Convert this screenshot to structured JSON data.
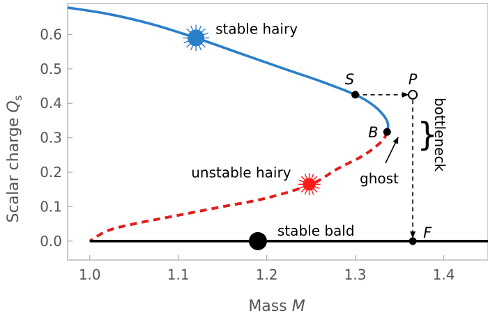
{
  "chart_data": {
    "type": "line",
    "xlabel": "Mass",
    "xlabel_var": "M",
    "ylabel": "Scalar charge",
    "ylabel_var": "Q",
    "ylabel_sub": "s",
    "xlim": [
      0.975,
      1.45
    ],
    "ylim": [
      -0.055,
      0.69
    ],
    "xticks": [
      1.0,
      1.1,
      1.2,
      1.3,
      1.4
    ],
    "xtick_labels": [
      "1.0",
      "1.1",
      "1.2",
      "1.3",
      "1.4"
    ],
    "yticks": [
      0.0,
      0.1,
      0.2,
      0.3,
      0.4,
      0.5,
      0.6
    ],
    "ytick_labels": [
      "0.0",
      "0.1",
      "0.2",
      "0.3",
      "0.4",
      "0.5",
      "0.6"
    ],
    "grid": false,
    "series": [
      {
        "style": "solid",
        "color": "#2a7fc9",
        "points": [
          [
            0.975,
            0.678
          ],
          [
            1.02,
            0.66
          ],
          [
            1.07,
            0.63
          ],
          [
            1.12,
            0.59
          ],
          [
            1.17,
            0.545
          ],
          [
            1.22,
            0.5
          ],
          [
            1.26,
            0.465
          ],
          [
            1.3,
            0.425
          ],
          [
            1.32,
            0.395
          ],
          [
            1.332,
            0.365
          ],
          [
            1.337,
            0.34
          ],
          [
            1.336,
            0.317
          ]
        ]
      },
      {
        "style": "dashed",
        "color": "#e02020",
        "points": [
          [
            1.336,
            0.317
          ],
          [
            1.33,
            0.29
          ],
          [
            1.31,
            0.25
          ],
          [
            1.28,
            0.21
          ],
          [
            1.25,
            0.165
          ],
          [
            1.2,
            0.125
          ],
          [
            1.15,
            0.1
          ],
          [
            1.1,
            0.075
          ],
          [
            1.05,
            0.05
          ],
          [
            1.02,
            0.03
          ],
          [
            1.0,
            0.0
          ]
        ]
      },
      {
        "style": "solid",
        "color": "#000000",
        "points": [
          [
            1.0,
            0.0
          ],
          [
            1.45,
            0.0
          ]
        ]
      }
    ],
    "markers": [
      {
        "label": "stable hairy",
        "x": 1.12,
        "y": 0.59,
        "color": "#2a7fc9",
        "style": "burst"
      },
      {
        "label": "unstable hairy",
        "x": 1.248,
        "y": 0.165,
        "color": "#ff1a1a",
        "style": "burst"
      },
      {
        "label": "stable bald",
        "x": 1.19,
        "y": 0.0,
        "color": "#000000",
        "style": "disk"
      }
    ],
    "points": [
      {
        "label": "S",
        "x": 1.3,
        "y": 0.425,
        "filled": true
      },
      {
        "label": "P",
        "x": 1.365,
        "y": 0.425,
        "filled": false
      },
      {
        "label": "B",
        "x": 1.336,
        "y": 0.317,
        "filled": true
      },
      {
        "label": "F",
        "x": 1.365,
        "y": 0.0,
        "filled": true
      }
    ],
    "arrows": [
      {
        "from": [
          1.3,
          0.425
        ],
        "to": [
          1.36,
          0.425
        ],
        "style": "dashed"
      },
      {
        "from": [
          1.365,
          0.41
        ],
        "to": [
          1.365,
          0.01
        ],
        "style": "dashed"
      }
    ],
    "annotations": {
      "ghost": "ghost",
      "bottleneck": "bottleneck",
      "brace": "}"
    }
  }
}
